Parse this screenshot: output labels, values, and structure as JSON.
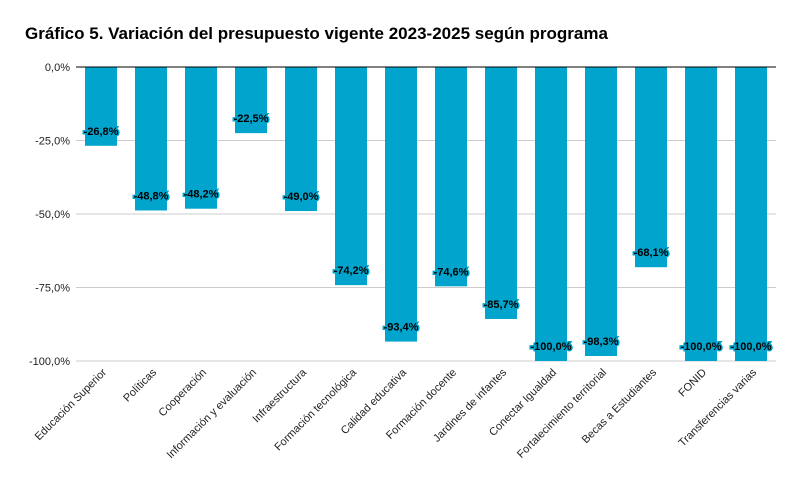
{
  "title": "Gráfico 5. Variación del presupuesto vigente 2023-2025 según programa",
  "colors": {
    "bar": "#00A4CC",
    "grid": "#cccccc",
    "axis": "#000000"
  },
  "chart_data": {
    "type": "bar",
    "categories": [
      "Educación Superior",
      "Políticas",
      "Cooperación",
      "Información y evaluación",
      "Infraestructura",
      "Formación tecnológica",
      "Calidad educativa",
      "Formación docente",
      "Jardines de infantes",
      "Conectar Igualdad",
      "Fortalecimiento territorial",
      "Becas a Estudiantes",
      "FONID",
      "Transferencias varias"
    ],
    "values": [
      -26.8,
      -48.8,
      -48.2,
      -22.5,
      -49.0,
      -74.2,
      -93.4,
      -74.6,
      -85.7,
      -100.0,
      -98.3,
      -68.1,
      -100.0,
      -100.0
    ],
    "data_labels": [
      "-26,8%",
      "-48,8%",
      "-48,2%",
      "-22,5%",
      "-49,0%",
      "-74,2%",
      "-93,4%",
      "-74,6%",
      "-85,7%",
      "-100,0%",
      "-98,3%",
      "-68,1%",
      "-100,0%",
      "-100,0%"
    ],
    "y_ticks": [
      0,
      -25,
      -50,
      -75,
      -100
    ],
    "y_tick_labels": [
      "0,0%",
      "-25,0%",
      "-50,0%",
      "-75,0%",
      "-100,0%"
    ],
    "ylim": [
      -100,
      0
    ],
    "grid": true,
    "legend": "none",
    "xlabel": "",
    "ylabel": ""
  }
}
